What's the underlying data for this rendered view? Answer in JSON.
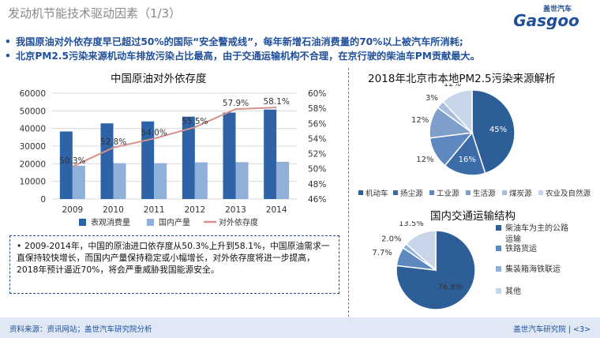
{
  "page": {
    "title": "发动机节能技术驱动因素（1/3）",
    "logo_top": "盖世汽车",
    "logo_main": "Gasgoo",
    "bullets": [
      "我国原油对外依存度早已超过50%的国际“安全警戒线”，每年新增石油消费量的70%以上被汽车所消耗;",
      "北京PM2.5污染来源机动车排放污染占比最高，由于交通运输机构不合理，在京行驶的柴油车PM贡献最大。"
    ],
    "summary": "2009-2014年，中国的原油进口依存度从50.3%上升到58.1%，中国原油需求一直保持较快增长，而国内产量保持稳定或小幅增长，对外依存度将进一步提高，2018年预计逼近70%，将会严重威胁我国能源安全。",
    "source": "资料来源：资讯网站；盖世汽车研究院分析",
    "page_number": "盖世汽车研究院 | <3>",
    "colors": {
      "dark_blue": "#2e63a8",
      "light_blue": "#8fb0d8",
      "line": "#d8908a",
      "text_blue": "#1f4e9a"
    }
  },
  "chart_data": [
    {
      "type": "bar",
      "title": "中国原油对外依存度",
      "categories": [
        "2009",
        "2010",
        "2011",
        "2012",
        "2013",
        "2014"
      ],
      "ylim": [
        0,
        60000
      ],
      "y_ticks": [
        "0",
        "10000",
        "20000",
        "30000",
        "40000",
        "50000",
        "60000"
      ],
      "y2lim": [
        46,
        60
      ],
      "y2_ticks": [
        "46%",
        "48%",
        "50%",
        "52%",
        "54%",
        "56%",
        "58%",
        "60%"
      ],
      "grid": true,
      "legend_position": "bottom",
      "series": [
        {
          "name": "表观消费量",
          "kind": "bar",
          "axis": "left",
          "color": "#2e63a8",
          "values": [
            38300,
            42900,
            44000,
            46700,
            49000,
            50700
          ]
        },
        {
          "name": "国内产量",
          "kind": "bar",
          "axis": "left",
          "color": "#8fb0d8",
          "values": [
            18900,
            20300,
            20300,
            20800,
            20900,
            21100
          ]
        },
        {
          "name": "对外依存度",
          "kind": "line",
          "axis": "right",
          "color": "#d8908a",
          "values": [
            50.3,
            52.8,
            54.0,
            55.5,
            57.9,
            58.1
          ],
          "labels": [
            "50.3%",
            "52.8%",
            "54.0%",
            "55.5%",
            "57.9%",
            "58.1%"
          ]
        }
      ]
    },
    {
      "type": "pie",
      "title": "2018年北京市本地PM2.5污染来源解析",
      "legend_position": "bottom",
      "categories": [
        "机动车",
        "扬尘源",
        "工业源",
        "生活源",
        "煤炭源",
        "农业及自然源"
      ],
      "values": [
        45,
        16,
        12,
        12,
        3,
        12
      ],
      "labels": [
        "45%",
        "16%",
        "12%",
        "12%",
        "3%",
        "12%"
      ],
      "colors": [
        "#2e5e98",
        "#3b6ca8",
        "#5d88c0",
        "#7f9fcb",
        "#a8bedc",
        "#c8d6ea"
      ]
    },
    {
      "type": "pie",
      "title": "国内交通运输结构",
      "legend_position": "right",
      "categories": [
        "柴油车为主的公路运输",
        "铁路货运",
        "集装箱海铁联运",
        "其他"
      ],
      "values": [
        76.8,
        7.7,
        2.0,
        13.5
      ],
      "labels": [
        "76.8%",
        "7.7%",
        "2.0%",
        "13.5%"
      ],
      "colors": [
        "#2e5e98",
        "#5d88c0",
        "#8fb0d8",
        "#c8d6ea"
      ]
    }
  ]
}
